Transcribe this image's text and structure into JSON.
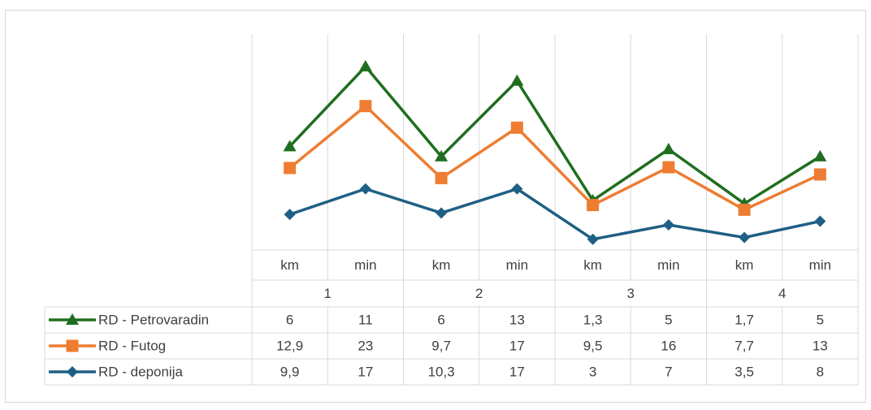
{
  "chart_data": {
    "type": "line",
    "stacked": true,
    "categories": [
      "km",
      "min",
      "km",
      "min",
      "km",
      "min",
      "km",
      "min"
    ],
    "groups": [
      "1",
      "2",
      "3",
      "4"
    ],
    "ylim": [
      0,
      60
    ],
    "series": [
      {
        "name": "RD - Petrovaradin",
        "color": "#1f6e1f",
        "marker": "triangle",
        "values": [
          6,
          11,
          6,
          13,
          1.3,
          5,
          1.7,
          5
        ],
        "value_labels": [
          "6",
          "11",
          "6",
          "13",
          "1,3",
          "5",
          "1,7",
          "5"
        ]
      },
      {
        "name": "RD - Futog",
        "color": "#ee7d31",
        "marker": "square",
        "values": [
          12.9,
          23,
          9.7,
          17,
          9.5,
          16,
          7.7,
          13
        ],
        "value_labels": [
          "12,9",
          "23",
          "9,7",
          "17",
          "9,5",
          "16",
          "7,7",
          "13"
        ]
      },
      {
        "name": "RD - deponija",
        "color": "#1f5f85",
        "marker": "diamond",
        "values": [
          9.9,
          17,
          10.3,
          17,
          3,
          7,
          3.5,
          8
        ],
        "value_labels": [
          "9,9",
          "17",
          "10,3",
          "17",
          "3",
          "7",
          "3,5",
          "8"
        ]
      }
    ]
  }
}
